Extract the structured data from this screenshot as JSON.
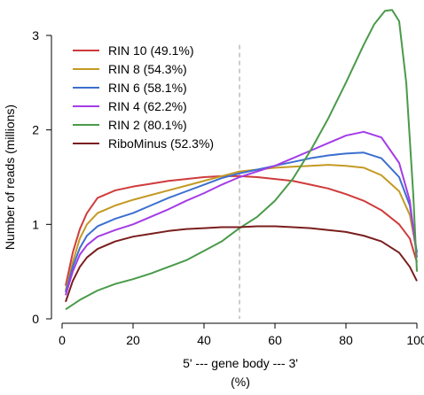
{
  "chart_data": {
    "type": "line",
    "xlabel": "5' --- gene body --- 3'",
    "xlabel_unit": "(%)",
    "ylabel": "Number of reads (millions)",
    "xlim": [
      0,
      100
    ],
    "ylim": [
      0,
      3.3
    ],
    "x_ticks": [
      0,
      20,
      40,
      60,
      80,
      100
    ],
    "y_ticks": [
      0,
      1,
      2,
      3
    ],
    "grid": false,
    "reference_line": {
      "x": 50,
      "style": "dashed",
      "color": "#aaaaaa"
    },
    "legend_position": "top-left",
    "series": [
      {
        "name": "RIN 10 (49.1%)",
        "color": "#cf3b3b",
        "x": [
          1,
          3,
          5,
          7,
          10,
          15,
          20,
          25,
          30,
          35,
          40,
          45,
          50,
          55,
          60,
          65,
          70,
          75,
          80,
          85,
          90,
          95,
          98,
          100
        ],
        "y": [
          0.35,
          0.7,
          0.95,
          1.12,
          1.28,
          1.36,
          1.4,
          1.43,
          1.46,
          1.48,
          1.5,
          1.51,
          1.51,
          1.5,
          1.48,
          1.46,
          1.42,
          1.38,
          1.32,
          1.25,
          1.15,
          1.0,
          0.85,
          0.6
        ]
      },
      {
        "name": "RIN 8 (54.3%)",
        "color": "#c49a24",
        "x": [
          1,
          3,
          5,
          7,
          10,
          15,
          20,
          25,
          30,
          35,
          40,
          45,
          50,
          55,
          60,
          65,
          70,
          75,
          80,
          85,
          90,
          95,
          98,
          100
        ],
        "y": [
          0.3,
          0.6,
          0.85,
          1.0,
          1.12,
          1.2,
          1.26,
          1.31,
          1.36,
          1.41,
          1.46,
          1.51,
          1.56,
          1.58,
          1.6,
          1.61,
          1.62,
          1.63,
          1.62,
          1.6,
          1.52,
          1.35,
          1.1,
          0.7
        ]
      },
      {
        "name": "RIN 6 (58.1%)",
        "color": "#3c6fcf",
        "x": [
          1,
          3,
          5,
          7,
          10,
          15,
          20,
          25,
          30,
          35,
          40,
          45,
          50,
          55,
          60,
          65,
          70,
          75,
          80,
          85,
          90,
          95,
          98,
          100
        ],
        "y": [
          0.28,
          0.55,
          0.75,
          0.88,
          0.98,
          1.06,
          1.12,
          1.2,
          1.28,
          1.35,
          1.42,
          1.49,
          1.54,
          1.58,
          1.62,
          1.66,
          1.7,
          1.73,
          1.75,
          1.76,
          1.7,
          1.5,
          1.2,
          0.7
        ]
      },
      {
        "name": "RIN 4 (62.2%)",
        "color": "#a43ce6",
        "x": [
          1,
          3,
          5,
          7,
          10,
          15,
          20,
          25,
          30,
          35,
          40,
          45,
          50,
          55,
          60,
          65,
          70,
          75,
          80,
          85,
          90,
          95,
          98,
          100
        ],
        "y": [
          0.25,
          0.5,
          0.68,
          0.78,
          0.87,
          0.94,
          1.0,
          1.08,
          1.16,
          1.25,
          1.33,
          1.42,
          1.5,
          1.56,
          1.62,
          1.7,
          1.78,
          1.86,
          1.94,
          1.98,
          1.92,
          1.65,
          1.25,
          0.65
        ]
      },
      {
        "name": "RIN 2 (80.1%)",
        "color": "#4a9a4a",
        "x": [
          1,
          5,
          10,
          15,
          20,
          25,
          30,
          35,
          40,
          45,
          50,
          55,
          60,
          65,
          70,
          75,
          80,
          85,
          88,
          91,
          93,
          95,
          97,
          99,
          100
        ],
        "y": [
          0.1,
          0.2,
          0.3,
          0.37,
          0.42,
          0.48,
          0.55,
          0.62,
          0.72,
          0.82,
          0.96,
          1.08,
          1.25,
          1.48,
          1.78,
          2.12,
          2.5,
          2.9,
          3.12,
          3.26,
          3.27,
          3.15,
          2.5,
          1.3,
          0.5
        ]
      },
      {
        "name": "RiboMinus (52.3%)",
        "color": "#7a1e1e",
        "x": [
          1,
          3,
          5,
          7,
          10,
          15,
          20,
          25,
          30,
          35,
          40,
          45,
          50,
          55,
          60,
          65,
          70,
          75,
          80,
          85,
          90,
          95,
          98,
          100
        ],
        "y": [
          0.18,
          0.4,
          0.55,
          0.65,
          0.74,
          0.82,
          0.87,
          0.9,
          0.93,
          0.95,
          0.96,
          0.97,
          0.97,
          0.98,
          0.98,
          0.97,
          0.96,
          0.94,
          0.92,
          0.88,
          0.82,
          0.7,
          0.55,
          0.4
        ]
      }
    ]
  }
}
